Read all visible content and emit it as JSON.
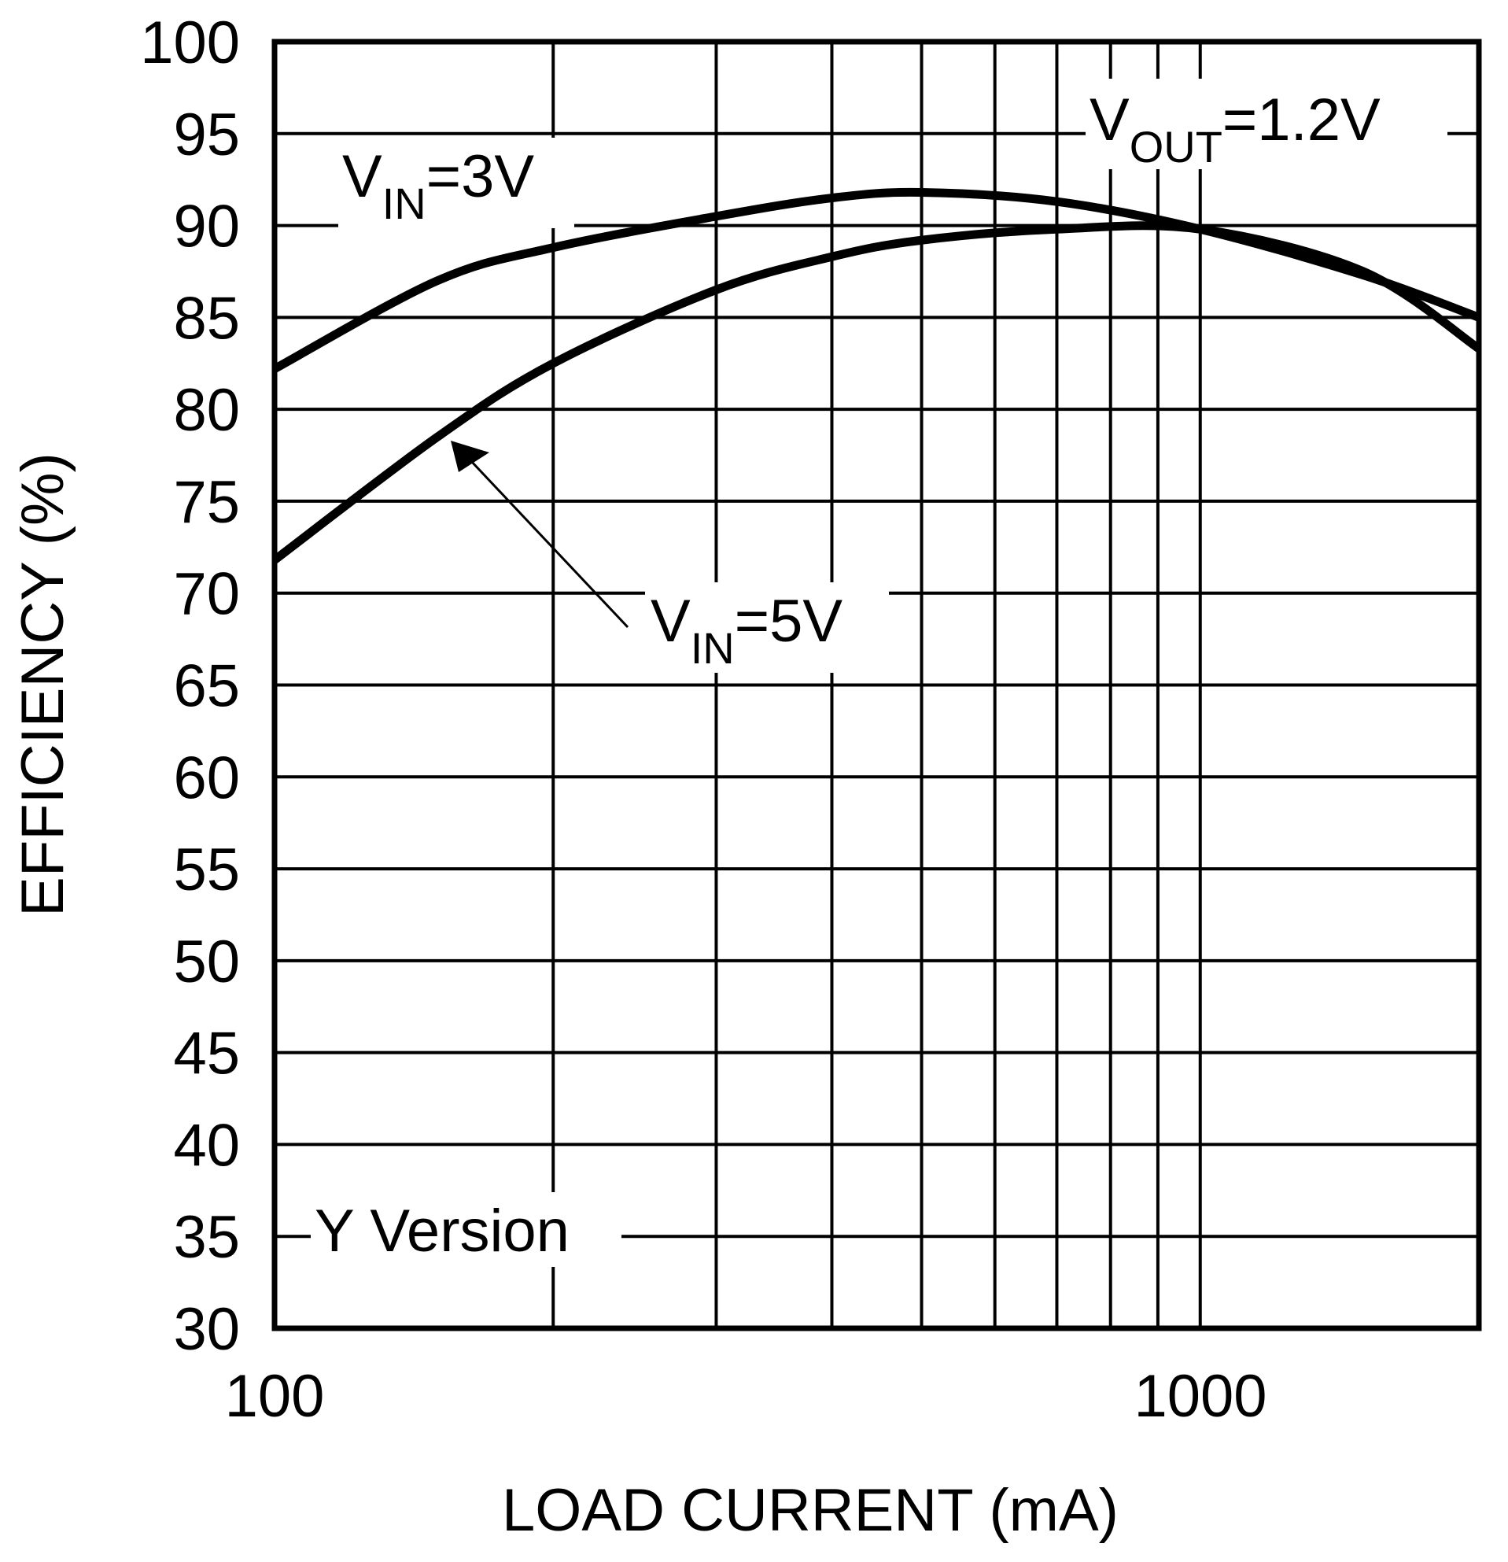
{
  "chart_data": {
    "type": "line",
    "title": "",
    "xlabel": "LOAD CURRENT (mA)",
    "ylabel": "EFFICIENCY (%)",
    "xscale": "log",
    "xlim": [
      100,
      2000
    ],
    "ylim": [
      30,
      100
    ],
    "grid": true,
    "x_tick_labels": [
      "100",
      "1000"
    ],
    "y_tick_labels": [
      "100",
      "95",
      "90",
      "85",
      "80",
      "75",
      "70",
      "65",
      "60",
      "55",
      "50",
      "45",
      "40",
      "35",
      "30"
    ],
    "x": [
      100,
      150,
      200,
      300,
      400,
      500,
      700,
      1000,
      1500,
      2000
    ],
    "series": [
      {
        "name": "VIN=3V",
        "values": [
          82.2,
          87.0,
          88.8,
          90.5,
          91.5,
          91.8,
          91.3,
          89.8,
          87.3,
          85.0
        ]
      },
      {
        "name": "VIN=5V",
        "values": [
          71.8,
          78.5,
          82.5,
          86.5,
          88.3,
          89.2,
          89.8,
          89.8,
          87.5,
          83.3
        ]
      }
    ],
    "annotations": [
      {
        "text": "VIN=3V",
        "main": "V",
        "subscript": "IN",
        "suffix": "=3V"
      },
      {
        "text": "VIN=5V",
        "main": "V",
        "subscript": "IN",
        "suffix": "=5V"
      },
      {
        "text": "VOUT=1.2V",
        "main": "V",
        "subscript": "OUT",
        "suffix": "=1.2V"
      },
      {
        "text": "Y Version"
      }
    ]
  },
  "labels": {
    "xlabel": "LOAD CURRENT (mA)",
    "ylabel": "EFFICIENCY (%)",
    "x100": "100",
    "x1000": "1000",
    "vin3_main": "V",
    "vin3_sub": "IN",
    "vin3_suffix": "=3V",
    "vin5_main": "V",
    "vin5_sub": "IN",
    "vin5_suffix": "=5V",
    "vout_main": "V",
    "vout_sub": "OUT",
    "vout_suffix": "=1.2V",
    "version": "Y Version"
  },
  "colors": {
    "line": "#000000",
    "background": "#ffffff"
  }
}
